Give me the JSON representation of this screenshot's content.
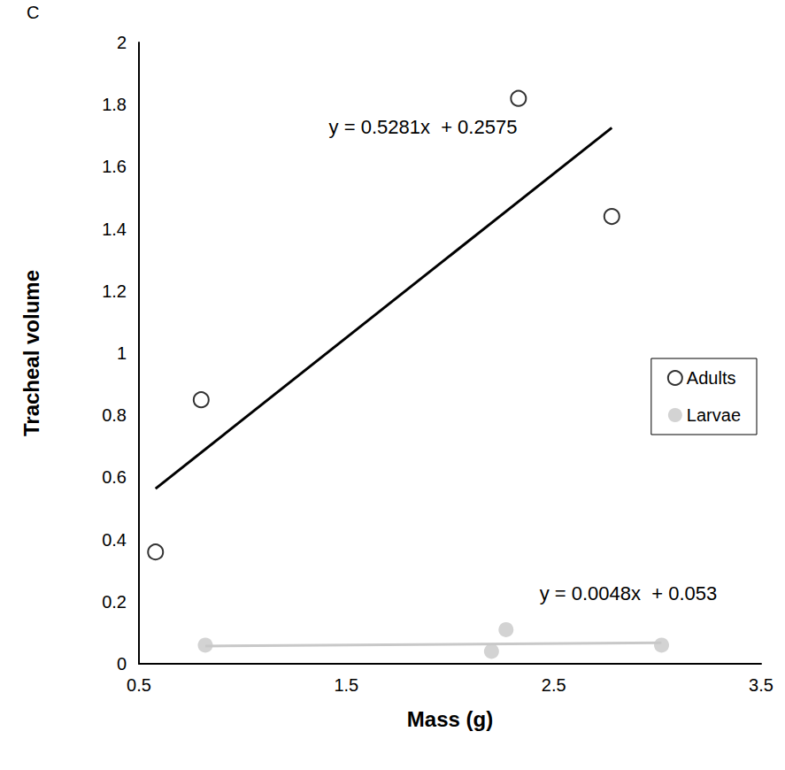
{
  "chart_data": {
    "type": "scatter",
    "panel_label": "C",
    "x_label": "Mass (g)",
    "y_label": "Tracheal volume",
    "xlim": [
      0.5,
      3.5
    ],
    "xticks": [
      0.5,
      1.5,
      2.5,
      3.5
    ],
    "ylim": [
      0,
      2
    ],
    "yticks": [
      0,
      0.2,
      0.4,
      0.6,
      0.8,
      1,
      1.2,
      1.4,
      1.6,
      1.8,
      2
    ],
    "grid": false,
    "legend": "right",
    "series": [
      {
        "name": "Adults",
        "color": "#000000",
        "marker": "hollow_circle",
        "x": [
          0.58,
          0.8,
          2.33,
          2.78
        ],
        "values": [
          0.36,
          0.85,
          1.82,
          1.44
        ],
        "trendline": {
          "slope": 0.5281,
          "intercept": 0.2575,
          "label": "y = 0.5281x  + 0.2575"
        }
      },
      {
        "name": "Larvae",
        "color": "#c8c8c8",
        "marker": "filled_circle",
        "x": [
          0.82,
          2.2,
          2.27,
          3.02
        ],
        "values": [
          0.06,
          0.04,
          0.11,
          0.06
        ],
        "trendline": {
          "slope": 0.0048,
          "intercept": 0.053,
          "label": "y = 0.0048x  + 0.053"
        }
      }
    ]
  }
}
